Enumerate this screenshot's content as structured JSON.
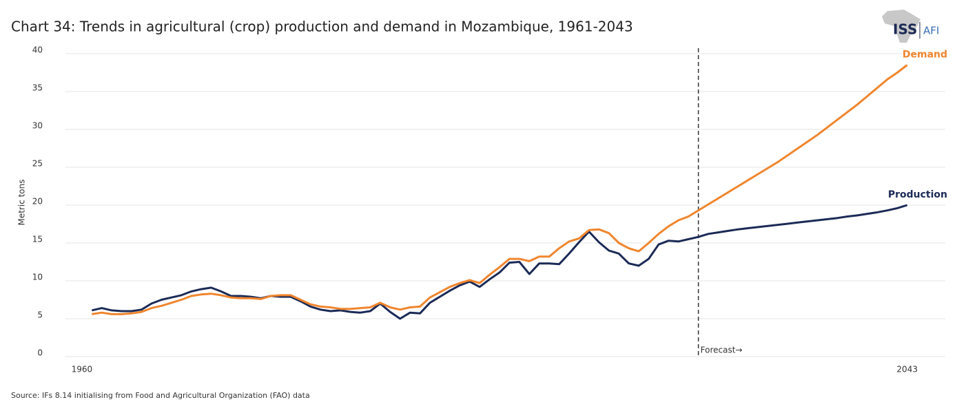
{
  "chart_data": {
    "type": "line",
    "title": "Chart 34: Trends in agricultural (crop) production and demand in Mozambique, 1961-2043",
    "ylabel": "Metric tons",
    "source": "Source: IFs 8.14 initialising from Food and Agricultural Organization (FAO) data",
    "logo": {
      "left": "ISS",
      "right": "AFI"
    },
    "annotations": [
      {
        "text": "Forecast→",
        "x": 2022
      }
    ],
    "x": [
      1961,
      1962,
      1963,
      1964,
      1965,
      1966,
      1967,
      1968,
      1969,
      1970,
      1971,
      1972,
      1973,
      1974,
      1975,
      1976,
      1977,
      1978,
      1979,
      1980,
      1981,
      1982,
      1983,
      1984,
      1985,
      1986,
      1987,
      1988,
      1989,
      1990,
      1991,
      1992,
      1993,
      1994,
      1995,
      1996,
      1997,
      1998,
      1999,
      2000,
      2001,
      2002,
      2003,
      2004,
      2005,
      2006,
      2007,
      2008,
      2009,
      2010,
      2011,
      2012,
      2013,
      2014,
      2015,
      2016,
      2017,
      2018,
      2019,
      2020,
      2021,
      2022,
      2023,
      2024,
      2025,
      2026,
      2027,
      2028,
      2029,
      2030,
      2031,
      2032,
      2033,
      2034,
      2035,
      2036,
      2037,
      2038,
      2039,
      2040,
      2041,
      2042,
      2043
    ],
    "series": [
      {
        "name": "Production",
        "color": "#1b2a56",
        "values": [
          6.1,
          6.4,
          6.1,
          6.0,
          6.0,
          6.2,
          7.0,
          7.5,
          7.8,
          8.1,
          8.6,
          8.9,
          9.1,
          8.6,
          8.0,
          8.0,
          7.9,
          7.7,
          8.0,
          7.9,
          7.9,
          7.3,
          6.6,
          6.2,
          6.0,
          6.1,
          5.9,
          5.8,
          6.0,
          7.0,
          5.9,
          5.0,
          5.8,
          5.7,
          7.1,
          7.9,
          8.7,
          9.4,
          9.9,
          9.2,
          10.2,
          11.1,
          12.4,
          12.5,
          10.9,
          12.3,
          12.3,
          12.2,
          13.6,
          15.1,
          16.5,
          15.1,
          14.0,
          13.6,
          12.3,
          12.0,
          12.9,
          14.8,
          15.3,
          15.2,
          15.5,
          15.8,
          16.2,
          16.4,
          16.6,
          16.8,
          16.95,
          17.1,
          17.25,
          17.4,
          17.55,
          17.7,
          17.85,
          18.0,
          18.15,
          18.3,
          18.5,
          18.65,
          18.85,
          19.05,
          19.3,
          19.6,
          20.0
        ]
      },
      {
        "name": "Demand",
        "color": "#f0852d",
        "values": [
          5.6,
          5.8,
          5.6,
          5.6,
          5.7,
          5.9,
          6.4,
          6.7,
          7.1,
          7.5,
          8.0,
          8.2,
          8.3,
          8.1,
          7.8,
          7.7,
          7.7,
          7.6,
          8.0,
          8.1,
          8.1,
          7.5,
          6.9,
          6.6,
          6.5,
          6.3,
          6.3,
          6.4,
          6.5,
          7.1,
          6.5,
          6.2,
          6.5,
          6.6,
          7.8,
          8.5,
          9.2,
          9.7,
          10.1,
          9.7,
          10.8,
          11.8,
          12.9,
          12.9,
          12.6,
          13.2,
          13.2,
          14.3,
          15.2,
          15.6,
          16.7,
          16.8,
          16.3,
          15.0,
          14.3,
          13.9,
          15.0,
          16.2,
          17.2,
          18.0,
          18.5,
          19.3,
          20.1,
          20.9,
          21.7,
          22.5,
          23.3,
          24.1,
          24.9,
          25.7,
          26.6,
          27.5,
          28.4,
          29.3,
          30.3,
          31.3,
          32.3,
          33.3,
          34.4,
          35.5,
          36.6,
          37.5,
          38.5
        ]
      }
    ],
    "xlim": [
      1958,
      2046
    ],
    "xticks": [
      1960,
      2043
    ],
    "ylim": [
      0,
      40
    ],
    "yticks": [
      0,
      5,
      10,
      15,
      20,
      25,
      30,
      35,
      40
    ],
    "grid": true
  }
}
